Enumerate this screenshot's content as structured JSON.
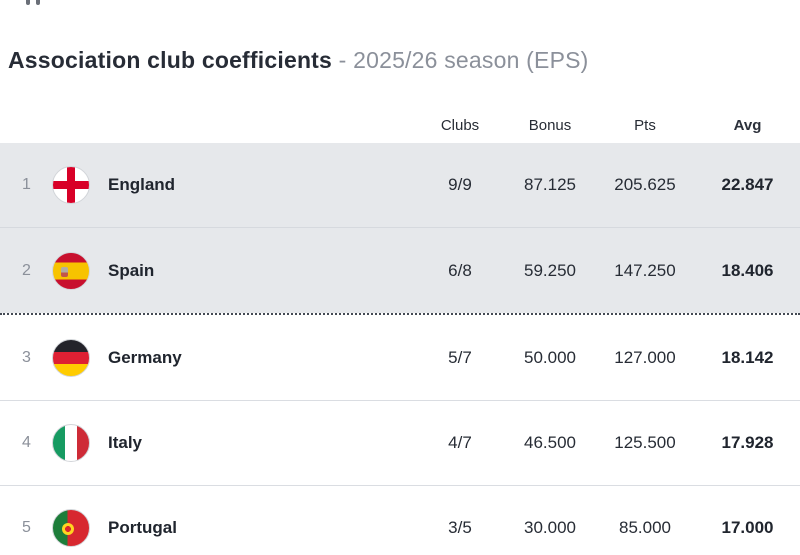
{
  "title": {
    "main": "Association club coefficients",
    "sub": "- 2025/26 season (EPS)"
  },
  "table": {
    "headers": {
      "clubs": "Clubs",
      "bonus": "Bonus",
      "pts": "Pts",
      "avg": "Avg"
    },
    "rows": [
      {
        "rank": "1",
        "country": "England",
        "flag_icon": "england-flag-icon",
        "clubs": "9/9",
        "bonus": "87.125",
        "pts": "205.625",
        "avg": "22.847",
        "highlighted": true
      },
      {
        "rank": "2",
        "country": "Spain",
        "flag_icon": "spain-flag-icon",
        "clubs": "6/8",
        "bonus": "59.250",
        "pts": "147.250",
        "avg": "18.406",
        "highlighted": true
      },
      {
        "rank": "3",
        "country": "Germany",
        "flag_icon": "germany-flag-icon",
        "clubs": "5/7",
        "bonus": "50.000",
        "pts": "127.000",
        "avg": "18.142",
        "highlighted": false
      },
      {
        "rank": "4",
        "country": "Italy",
        "flag_icon": "italy-flag-icon",
        "clubs": "4/7",
        "bonus": "46.500",
        "pts": "125.500",
        "avg": "17.928",
        "highlighted": false
      },
      {
        "rank": "5",
        "country": "Portugal",
        "flag_icon": "portugal-flag-icon",
        "clubs": "3/5",
        "bonus": "30.000",
        "pts": "85.000",
        "avg": "17.000",
        "highlighted": false
      }
    ]
  },
  "colors": {
    "highlight_row": "#e6e8eb",
    "text_dark": "#22262f",
    "text_gray": "#8b909a",
    "cutoff_dotted": "#444a54"
  }
}
